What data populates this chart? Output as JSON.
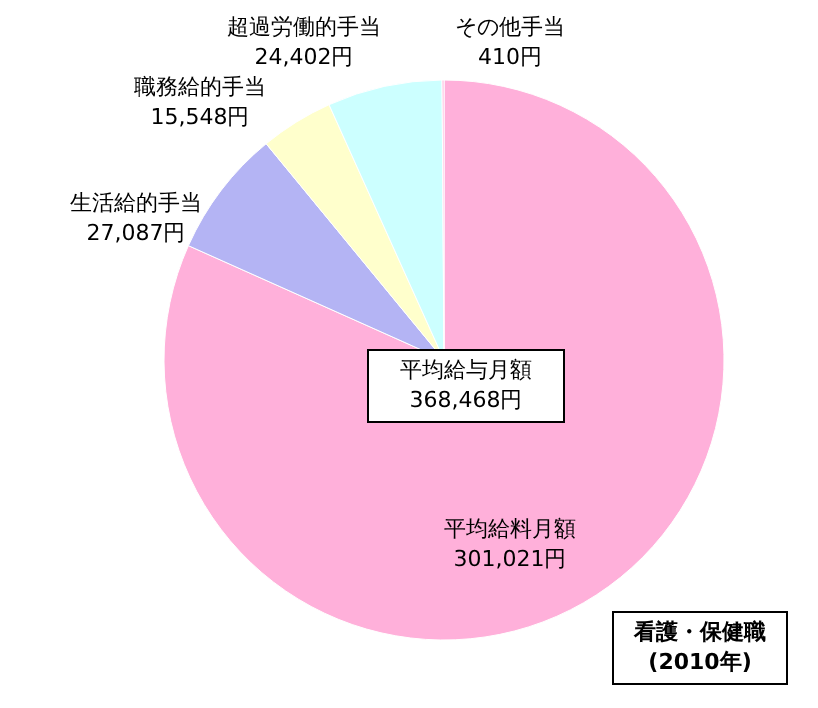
{
  "chart_data": {
    "type": "pie",
    "categories": [
      "平均給料月額",
      "生活給的手当",
      "職務給的手当",
      "超過労働的手当",
      "その他手当"
    ],
    "values": [
      301021,
      27087,
      15548,
      24402,
      410
    ],
    "value_labels": [
      "301,021円",
      "27,087円",
      "15,548円",
      "24,402円",
      "410円"
    ],
    "colors": [
      "#ffb0da",
      "#b4b4f4",
      "#ffffcc",
      "#ccffff",
      "#ffb0da"
    ],
    "annotations": [
      "平均給与月額\n368,468円",
      "看護・保健職\n(2010年)"
    ]
  }
}
